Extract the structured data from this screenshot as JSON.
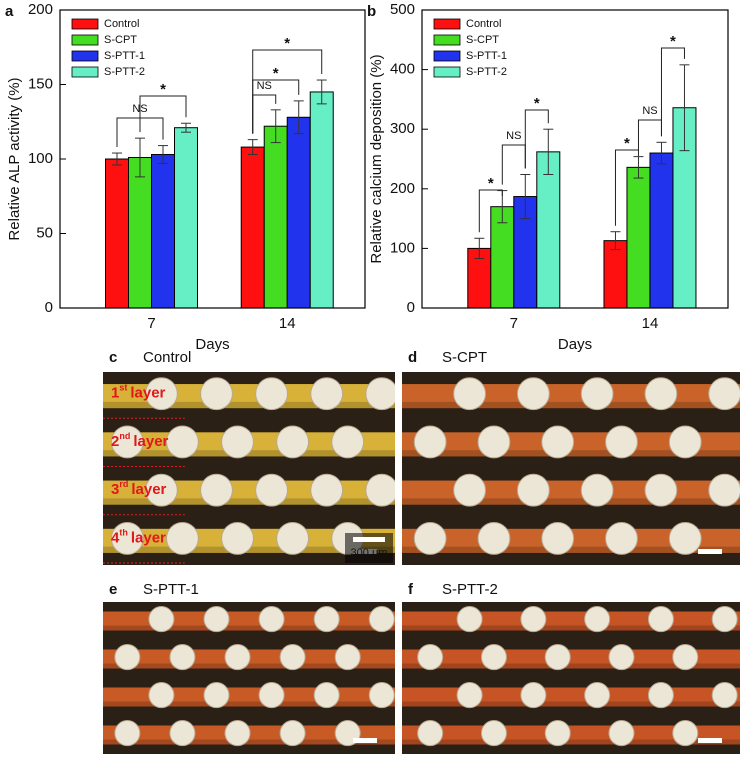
{
  "chart_data": [
    {
      "type": "bar",
      "panel_label": "a",
      "x_label": "Days",
      "y_label": "Relative ALP activity (%)",
      "categories": [
        "7",
        "14"
      ],
      "ylim": [
        0,
        200
      ],
      "yticks": [
        0,
        50,
        100,
        150,
        200
      ],
      "legend": "upper left",
      "series": [
        {
          "name": "Control",
          "color": "#ff1010",
          "values": [
            100,
            108
          ],
          "errors": [
            4,
            5
          ]
        },
        {
          "name": "S-CPT",
          "color": "#44dd22",
          "values": [
            101,
            122
          ],
          "errors": [
            13,
            11
          ]
        },
        {
          "name": "S-PTT-1",
          "color": "#2233ee",
          "values": [
            103,
            128
          ],
          "errors": [
            6,
            11
          ]
        },
        {
          "name": "S-PTT-2",
          "color": "#66eec4",
          "values": [
            121,
            145
          ],
          "errors": [
            3,
            8
          ]
        }
      ],
      "annotations": [
        "NS",
        "*",
        "NS",
        "*",
        "*"
      ]
    },
    {
      "type": "bar",
      "panel_label": "b",
      "x_label": "Days",
      "y_label": "Relative calcium deposition (%)",
      "categories": [
        "7",
        "14"
      ],
      "ylim": [
        0,
        500
      ],
      "yticks": [
        0,
        100,
        200,
        300,
        400,
        500
      ],
      "legend": "upper left",
      "series": [
        {
          "name": "Control",
          "color": "#ff1010",
          "values": [
            100,
            113
          ],
          "errors": [
            17,
            15
          ]
        },
        {
          "name": "S-CPT",
          "color": "#44dd22",
          "values": [
            170,
            236
          ],
          "errors": [
            27,
            18
          ]
        },
        {
          "name": "S-PTT-1",
          "color": "#2233ee",
          "values": [
            187,
            260
          ],
          "errors": [
            37,
            18
          ]
        },
        {
          "name": "S-PTT-2",
          "color": "#66eec4",
          "values": [
            262,
            336
          ],
          "errors": [
            38,
            72
          ]
        }
      ],
      "annotations": [
        "*",
        "NS",
        "*",
        "*",
        "NS",
        "*"
      ]
    }
  ],
  "photos": [
    {
      "letter": "c",
      "title": "Control",
      "scale": "300 μm",
      "layers": [
        {
          "n": "1",
          "sup": "st",
          "word": "layer"
        },
        {
          "n": "2",
          "sup": "nd",
          "word": "layer"
        },
        {
          "n": "3",
          "sup": "rd",
          "word": "layer"
        },
        {
          "n": "4",
          "sup": "th",
          "word": "layer"
        }
      ]
    },
    {
      "letter": "d",
      "title": "S-CPT"
    },
    {
      "letter": "e",
      "title": "S-PTT-1"
    },
    {
      "letter": "f",
      "title": "S-PTT-2"
    }
  ]
}
